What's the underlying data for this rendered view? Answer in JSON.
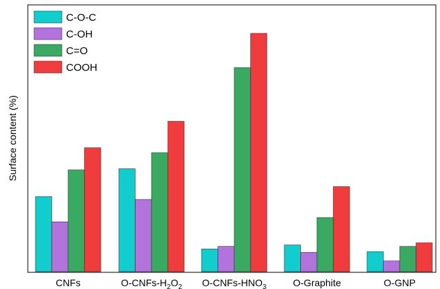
{
  "chart_data": {
    "type": "bar",
    "title": "",
    "xlabel": "",
    "ylabel": "Surface content (%)",
    "y_ticks_shown": false,
    "ylim": [
      0,
      100
    ],
    "grid": false,
    "legend_position": "top-left",
    "categories": [
      {
        "main": "CNFs",
        "sub1": "",
        "mid": "",
        "sub2": ""
      },
      {
        "main": "O-CNFs-H",
        "sub1": "2",
        "mid": "O",
        "sub2": "2"
      },
      {
        "main": "O-CNFs-HNO",
        "sub1": "3",
        "mid": "",
        "sub2": ""
      },
      {
        "main": "O-Graphite",
        "sub1": "",
        "mid": "",
        "sub2": ""
      },
      {
        "main": "O-GNP",
        "sub1": "",
        "mid": "",
        "sub2": ""
      }
    ],
    "series": [
      {
        "name": "C-O-C",
        "color": "#12cdcd",
        "values": [
          31.5,
          43.2,
          9.5,
          11.2,
          8.4
        ]
      },
      {
        "name": "C-OH",
        "color": "#b273dd",
        "values": [
          20.9,
          30.3,
          10.6,
          8.1,
          4.5
        ]
      },
      {
        "name": "C=O",
        "color": "#3aaa62",
        "values": [
          42.7,
          49.9,
          85.6,
          22.7,
          10.6
        ]
      },
      {
        "name": "COOH",
        "color": "#f03c3c",
        "values": [
          52.0,
          63.1,
          100.0,
          35.7,
          12.1
        ]
      }
    ]
  }
}
